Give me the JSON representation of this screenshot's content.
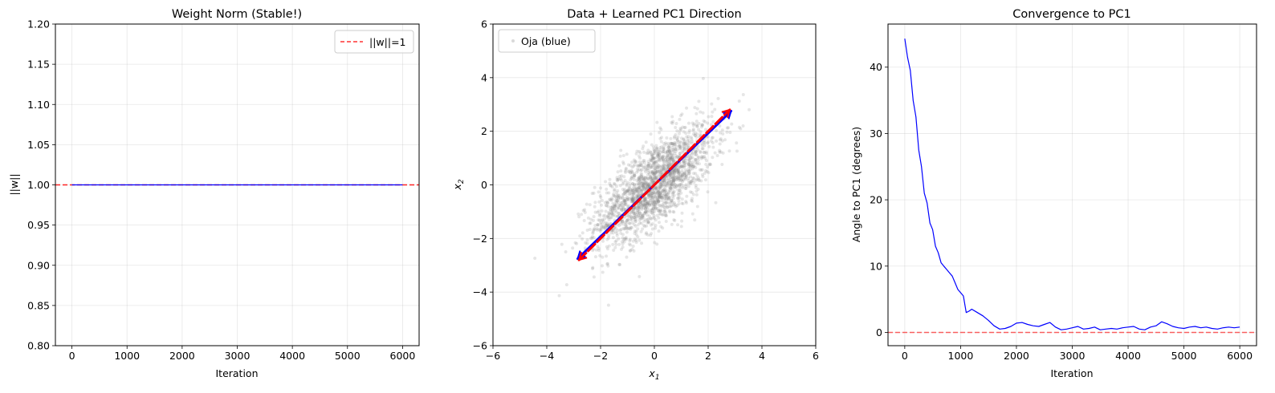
{
  "chart_data": [
    {
      "type": "line",
      "title": "Weight Norm (Stable!)",
      "xlabel": "Iteration",
      "ylabel": "||w||",
      "xlim": [
        -300,
        6300
      ],
      "ylim": [
        0.8,
        1.2
      ],
      "xticks": [
        0,
        1000,
        2000,
        3000,
        4000,
        5000,
        6000
      ],
      "yticks": [
        0.8,
        0.85,
        0.9,
        0.95,
        1.0,
        1.05,
        1.1,
        1.15,
        1.2
      ],
      "xtick_labels": [
        "0",
        "1000",
        "2000",
        "3000",
        "4000",
        "5000",
        "6000"
      ],
      "ytick_labels": [
        "0.80",
        "0.85",
        "0.90",
        "0.95",
        "1.00",
        "1.05",
        "1.10",
        "1.15",
        "1.20"
      ],
      "grid": true,
      "legend_position": "top-right",
      "series": [
        {
          "name": "",
          "style": "solid",
          "color": "#0000ff",
          "x": [
            0,
            6000
          ],
          "y": [
            1.0,
            1.0
          ]
        }
      ],
      "reference_lines": [
        {
          "name": "||w||=1",
          "orientation": "horizontal",
          "y": 1.0,
          "style": "dashed",
          "color": "#ff0000"
        }
      ]
    },
    {
      "type": "scatter",
      "title": "Data + Learned PC1 Direction",
      "xlabel": "x1",
      "ylabel": "x2",
      "xlim": [
        -6,
        6
      ],
      "ylim": [
        -6,
        6
      ],
      "xticks": [
        -6,
        -4,
        -2,
        0,
        2,
        4,
        6
      ],
      "yticks": [
        -6,
        -4,
        -2,
        0,
        2,
        4,
        6
      ],
      "xtick_labels": [
        "−6",
        "−4",
        "−2",
        "0",
        "2",
        "4",
        "6"
      ],
      "ytick_labels": [
        "−6",
        "−4",
        "−2",
        "0",
        "2",
        "4",
        "6"
      ],
      "grid": true,
      "legend_position": "top-left",
      "legend": [
        {
          "name": "Oja (blue)",
          "color": "#808080"
        }
      ],
      "scatter_distribution": {
        "count": 2000,
        "var_x": 1.0,
        "var_y": 1.0,
        "correlation": 0.7,
        "color": "#808080",
        "opacity": 0.2
      },
      "arrows": [
        {
          "name": "Oja (blue)",
          "color": "#0000ff",
          "from": [
            -2.85,
            -2.75
          ],
          "to": [
            2.85,
            2.75
          ]
        },
        {
          "name": "",
          "color": "#ff0000",
          "style": "dashed",
          "from": [
            -2.8,
            -2.8
          ],
          "to": [
            2.8,
            2.8
          ]
        }
      ]
    },
    {
      "type": "line",
      "title": "Convergence to PC1",
      "xlabel": "Iteration",
      "ylabel": "Angle to PC1 (degrees)",
      "xlim": [
        -300,
        6300
      ],
      "ylim": [
        -2,
        46.5
      ],
      "xticks": [
        0,
        1000,
        2000,
        3000,
        4000,
        5000,
        6000
      ],
      "yticks": [
        0,
        10,
        20,
        30,
        40
      ],
      "xtick_labels": [
        "0",
        "1000",
        "2000",
        "3000",
        "4000",
        "5000",
        "6000"
      ],
      "ytick_labels": [
        "0",
        "10",
        "20",
        "30",
        "40"
      ],
      "grid": true,
      "series": [
        {
          "name": "",
          "color": "#0000ff",
          "x": [
            0,
            50,
            100,
            150,
            200,
            250,
            300,
            350,
            400,
            450,
            500,
            550,
            600,
            650,
            700,
            750,
            800,
            850,
            900,
            950,
            1000,
            1050,
            1100,
            1150,
            1200,
            1300,
            1400,
            1500,
            1600,
            1700,
            1800,
            1900,
            2000,
            2100,
            2200,
            2300,
            2400,
            2500,
            2600,
            2700,
            2800,
            2900,
            3000,
            3100,
            3200,
            3300,
            3400,
            3500,
            3600,
            3700,
            3800,
            3900,
            4000,
            4100,
            4200,
            4300,
            4400,
            4500,
            4600,
            4700,
            4800,
            4900,
            5000,
            5100,
            5200,
            5300,
            5400,
            5500,
            5600,
            5700,
            5800,
            5900,
            6000
          ],
          "y": [
            44.3,
            41.5,
            39.5,
            35.0,
            32.5,
            27.5,
            25.0,
            21.0,
            19.5,
            16.5,
            15.5,
            13.0,
            12.0,
            10.5,
            10.0,
            9.5,
            9.0,
            8.5,
            7.5,
            6.5,
            6.0,
            5.5,
            3.0,
            3.2,
            3.5,
            3.0,
            2.5,
            1.8,
            1.0,
            0.5,
            0.6,
            0.9,
            1.4,
            1.5,
            1.2,
            1.0,
            0.9,
            1.2,
            1.5,
            0.8,
            0.4,
            0.5,
            0.7,
            0.9,
            0.5,
            0.6,
            0.8,
            0.4,
            0.5,
            0.6,
            0.5,
            0.7,
            0.8,
            0.9,
            0.5,
            0.4,
            0.8,
            1.0,
            1.6,
            1.3,
            0.9,
            0.7,
            0.6,
            0.8,
            0.9,
            0.7,
            0.8,
            0.6,
            0.5,
            0.7,
            0.8,
            0.7,
            0.8
          ]
        }
      ],
      "reference_lines": [
        {
          "name": "",
          "orientation": "horizontal",
          "y": 0,
          "style": "dashed",
          "color": "#ff0000"
        }
      ]
    }
  ]
}
